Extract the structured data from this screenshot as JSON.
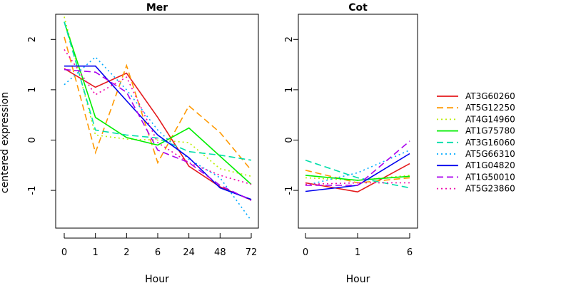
{
  "ylabel": "centered expression",
  "chart_data": [
    {
      "type": "line",
      "title": "Mer",
      "xlabel": "Hour",
      "categories": [
        "0",
        "1",
        "2",
        "6",
        "24",
        "48",
        "72"
      ],
      "ylim": [
        -1.75,
        2.5
      ],
      "yticks": [
        -1,
        0,
        1,
        2
      ],
      "series": [
        {
          "name": "AT3G60260",
          "color": "#e41a1c",
          "dash": "solid",
          "values": [
            1.42,
            1.05,
            1.33,
            0.45,
            -0.52,
            -0.93,
            -1.19
          ]
        },
        {
          "name": "AT5G12250",
          "color": "#ff9900",
          "dash": "dashed",
          "values": [
            2.05,
            -0.25,
            1.48,
            -0.45,
            0.68,
            0.15,
            -0.6
          ]
        },
        {
          "name": "AT4G14960",
          "color": "#bbee00",
          "dash": "dotted",
          "values": [
            2.45,
            0.1,
            0.02,
            0.0,
            -0.05,
            -0.57,
            -0.72
          ]
        },
        {
          "name": "AT1G75780",
          "color": "#00ee00",
          "dash": "solid",
          "values": [
            2.35,
            0.45,
            0.05,
            -0.1,
            0.24,
            -0.32,
            -0.88
          ]
        },
        {
          "name": "AT3G16060",
          "color": "#00ddaa",
          "dash": "dashed",
          "values": [
            2.35,
            0.2,
            0.1,
            0.04,
            -0.23,
            -0.3,
            -0.4
          ]
        },
        {
          "name": "AT5G66310",
          "color": "#00aaff",
          "dash": "dotted",
          "values": [
            1.1,
            1.65,
            1.0,
            0.2,
            -0.38,
            -0.75,
            -1.6
          ]
        },
        {
          "name": "AT1G04820",
          "color": "#0000ee",
          "dash": "solid",
          "values": [
            1.47,
            1.47,
            0.78,
            0.1,
            -0.35,
            -0.95,
            -1.18
          ]
        },
        {
          "name": "AT1G50010",
          "color": "#aa00ee",
          "dash": "dashed",
          "values": [
            1.4,
            1.35,
            0.95,
            -0.2,
            -0.45,
            -0.9,
            -1.2
          ]
        },
        {
          "name": "AT5G23860",
          "color": "#ee00aa",
          "dash": "dotted",
          "values": [
            1.8,
            0.9,
            1.25,
            -0.05,
            -0.45,
            -0.7,
            -0.88
          ]
        }
      ]
    },
    {
      "type": "line",
      "title": "Cot",
      "xlabel": "Hour",
      "categories": [
        "0",
        "1",
        "6"
      ],
      "ylim": [
        -1.75,
        2.5
      ],
      "yticks": [
        -1,
        0,
        1,
        2
      ],
      "series": [
        {
          "name": "AT3G60260",
          "color": "#e41a1c",
          "dash": "solid",
          "values": [
            -0.85,
            -1.03,
            -0.47
          ]
        },
        {
          "name": "AT5G12250",
          "color": "#ff9900",
          "dash": "dashed",
          "values": [
            -0.6,
            -0.85,
            -0.75
          ]
        },
        {
          "name": "AT4G14960",
          "color": "#bbee00",
          "dash": "dotted",
          "values": [
            -0.75,
            -0.8,
            -0.7
          ]
        },
        {
          "name": "AT1G75780",
          "color": "#00ee00",
          "dash": "solid",
          "values": [
            -0.7,
            -0.8,
            -0.72
          ]
        },
        {
          "name": "AT3G16060",
          "color": "#00ddaa",
          "dash": "dashed",
          "values": [
            -0.4,
            -0.75,
            -0.95
          ]
        },
        {
          "name": "AT5G66310",
          "color": "#00aaff",
          "dash": "dotted",
          "values": [
            -0.9,
            -0.65,
            -0.2
          ]
        },
        {
          "name": "AT1G04820",
          "color": "#0000ee",
          "dash": "solid",
          "values": [
            -1.02,
            -0.9,
            -0.27
          ]
        },
        {
          "name": "AT1G50010",
          "color": "#aa00ee",
          "dash": "dashed",
          "values": [
            -0.9,
            -0.9,
            -0.02
          ]
        },
        {
          "name": "AT5G23860",
          "color": "#ee00aa",
          "dash": "dotted",
          "values": [
            -0.88,
            -0.85,
            -0.85
          ]
        }
      ]
    }
  ]
}
